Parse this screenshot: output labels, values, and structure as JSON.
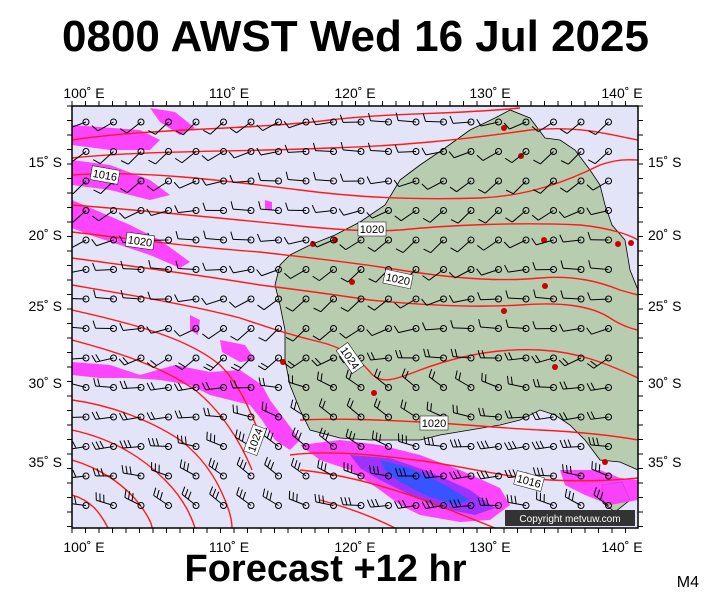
{
  "title": "0800 AWST Wed 16 Jul 2025",
  "subtitle": "Forecast +12 hr",
  "model_code": "M4",
  "copyright": "Copyright metvuw.com",
  "map": {
    "lon_ticks": [
      "100˚ E",
      "110˚ E",
      "120˚ E",
      "130˚ E",
      "140˚ E"
    ],
    "lat_ticks": [
      "15˚ S",
      "20˚ S",
      "25˚ S",
      "30˚ S",
      "35˚ S"
    ],
    "isobar_labels": [
      "1016",
      "1020",
      "1016",
      "1020",
      "1024",
      "1024",
      "1020",
      "1016"
    ]
  },
  "colors": {
    "ocean": "#e4e4f8",
    "land": "#b8ccb0",
    "isobar": "#ff1a1a",
    "rain_light": "#ff33ff",
    "rain_medium": "#9933ff",
    "rain_heavy": "#3355ff",
    "station": "#cc0000"
  }
}
